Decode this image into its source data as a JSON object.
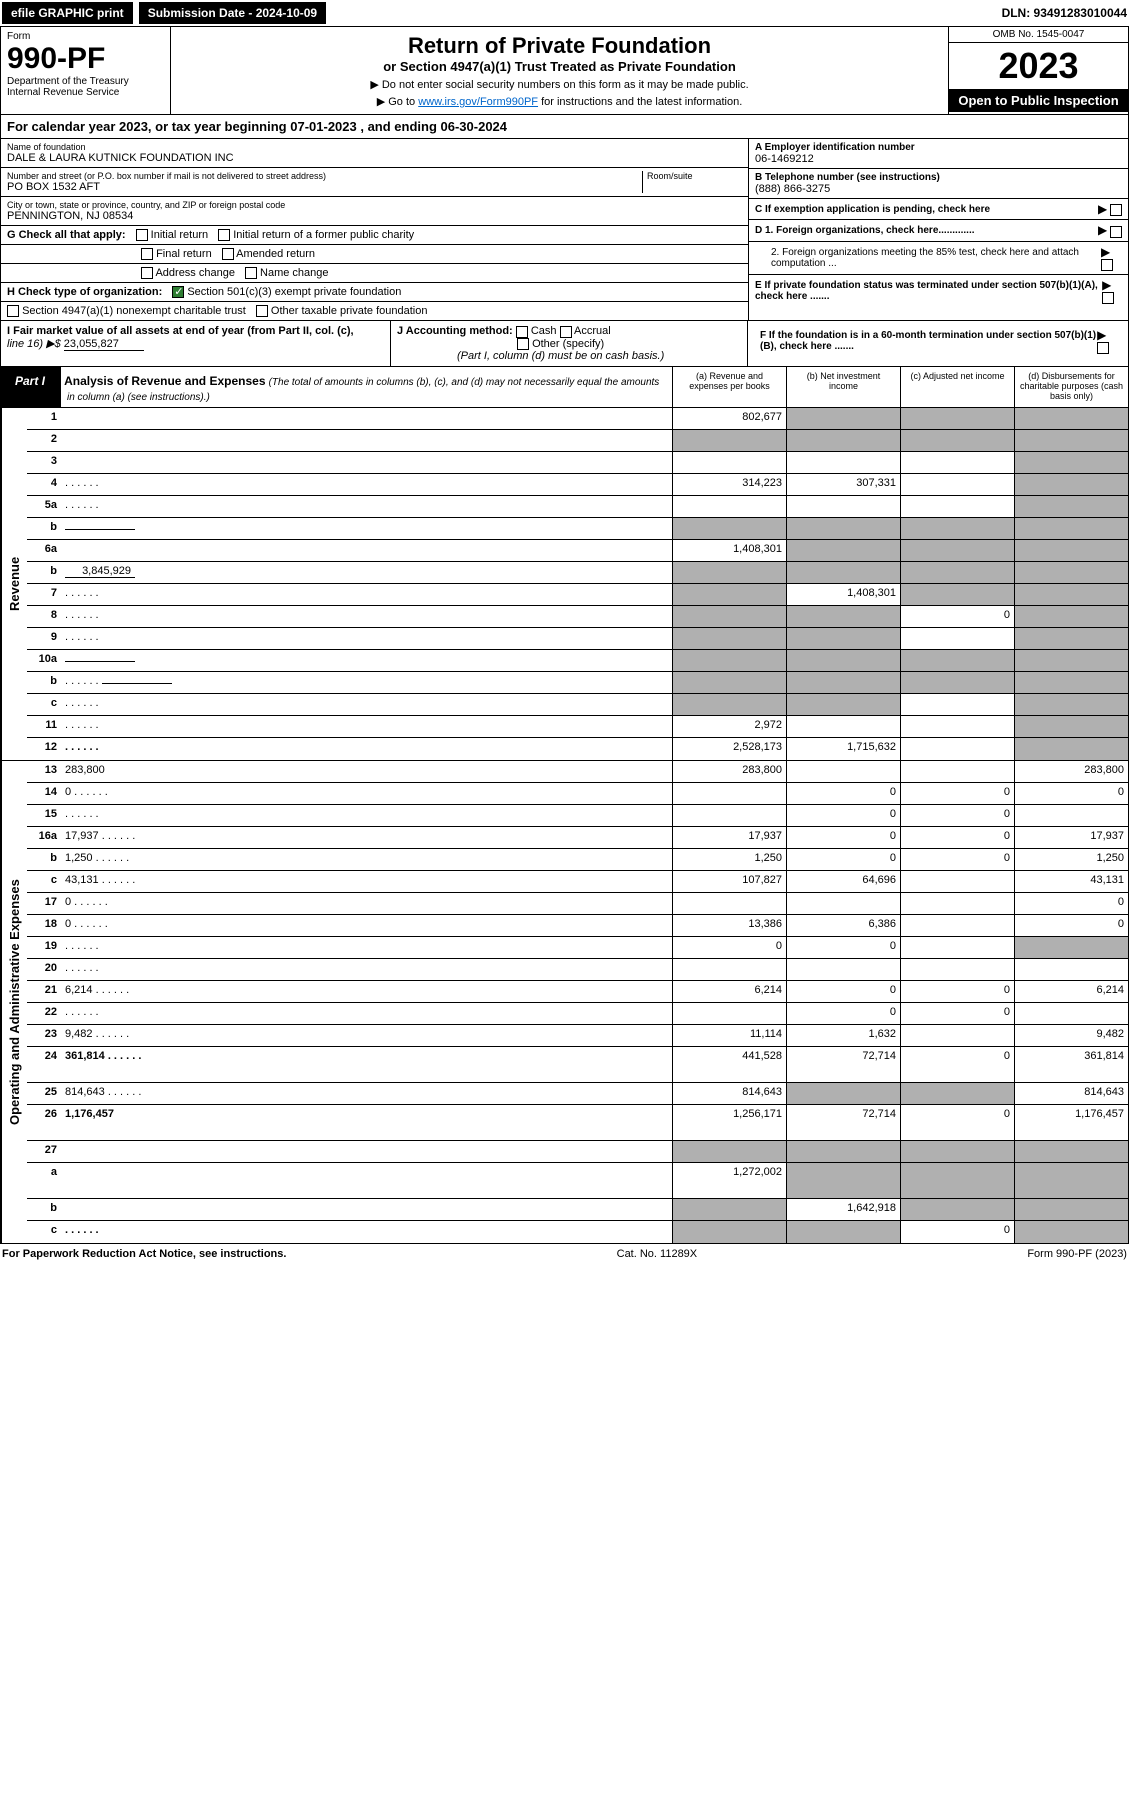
{
  "topbar": {
    "efile": "efile GRAPHIC print",
    "submission_label": "Submission Date - 2024-10-09",
    "dln": "DLN: 93491283010044"
  },
  "header": {
    "form_label": "Form",
    "form_number": "990-PF",
    "dept": "Department of the Treasury",
    "irs": "Internal Revenue Service",
    "title": "Return of Private Foundation",
    "subtitle": "or Section 4947(a)(1) Trust Treated as Private Foundation",
    "note1": "▶ Do not enter social security numbers on this form as it may be made public.",
    "note2_pre": "▶ Go to ",
    "note2_link": "www.irs.gov/Form990PF",
    "note2_post": " for instructions and the latest information.",
    "omb": "OMB No. 1545-0047",
    "year": "2023",
    "inspect": "Open to Public Inspection"
  },
  "calyear": {
    "text_pre": "For calendar year 2023, or tax year beginning ",
    "begin": "07-01-2023",
    "mid": " , and ending ",
    "end": "06-30-2024"
  },
  "entity": {
    "name_label": "Name of foundation",
    "name": "DALE & LAURA KUTNICK FOUNDATION INC",
    "addr_label": "Number and street (or P.O. box number if mail is not delivered to street address)",
    "addr": "PO BOX 1532 AFT",
    "room_label": "Room/suite",
    "city_label": "City or town, state or province, country, and ZIP or foreign postal code",
    "city": "PENNINGTON, NJ  08534",
    "ein_label": "A Employer identification number",
    "ein": "06-1469212",
    "phone_label": "B Telephone number (see instructions)",
    "phone": "(888) 866-3275",
    "c_label": "C If exemption application is pending, check here",
    "d1": "D 1. Foreign organizations, check here.............",
    "d2": "2. Foreign organizations meeting the 85% test, check here and attach computation ...",
    "e_label": "E  If private foundation status was terminated under section 507(b)(1)(A), check here .......",
    "f_label": "F  If the foundation is in a 60-month termination under section 507(b)(1)(B), check here ......."
  },
  "checks": {
    "g_label": "G Check all that apply:",
    "initial": "Initial return",
    "initial_former": "Initial return of a former public charity",
    "final": "Final return",
    "amended": "Amended return",
    "addr_change": "Address change",
    "name_change": "Name change",
    "h_label": "H Check type of organization:",
    "h_501c3": "Section 501(c)(3) exempt private foundation",
    "h_4947": "Section 4947(a)(1) nonexempt charitable trust",
    "h_other": "Other taxable private foundation",
    "i_label": "I Fair market value of all assets at end of year (from Part II, col. (c),",
    "i_line": "line 16) ▶$",
    "i_val": "23,055,827",
    "j_label": "J Accounting method:",
    "j_cash": "Cash",
    "j_accrual": "Accrual",
    "j_other": "Other (specify)",
    "j_note": "(Part I, column (d) must be on cash basis.)"
  },
  "part1": {
    "label": "Part I",
    "title": "Analysis of Revenue and Expenses",
    "title_note": "(The total of amounts in columns (b), (c), and (d) may not necessarily equal the amounts in column (a) (see instructions).)",
    "col_a": "(a) Revenue and expenses per books",
    "col_b": "(b) Net investment income",
    "col_c": "(c) Adjusted net income",
    "col_d": "(d) Disbursements for charitable purposes (cash basis only)"
  },
  "side_revenue": "Revenue",
  "side_expenses": "Operating and Administrative Expenses",
  "rows": [
    {
      "n": "1",
      "d": "",
      "a": "802,677",
      "b": "",
      "c": "",
      "sb": true,
      "sc": true,
      "sd": true
    },
    {
      "n": "2",
      "d": "",
      "a": "",
      "b": "",
      "c": "",
      "sa": true,
      "sb": true,
      "sc": true,
      "sd": true,
      "bold_parts": true
    },
    {
      "n": "3",
      "d": "",
      "a": "",
      "b": "",
      "c": "",
      "sd": true
    },
    {
      "n": "4",
      "d": "",
      "a": "314,223",
      "b": "307,331",
      "c": "",
      "sd": true,
      "dots": true
    },
    {
      "n": "5a",
      "d": "",
      "a": "",
      "b": "",
      "c": "",
      "sd": true,
      "dots": true
    },
    {
      "n": "b",
      "d": "",
      "a": "",
      "b": "",
      "c": "",
      "sa": true,
      "sb": true,
      "sc": true,
      "sd": true,
      "inline": true
    },
    {
      "n": "6a",
      "d": "",
      "a": "1,408,301",
      "b": "",
      "c": "",
      "sb": true,
      "sc": true,
      "sd": true
    },
    {
      "n": "b",
      "d": "",
      "a": "",
      "b": "",
      "c": "",
      "sa": true,
      "sb": true,
      "sc": true,
      "sd": true,
      "inline": true,
      "inline_val": "3,845,929"
    },
    {
      "n": "7",
      "d": "",
      "a": "",
      "b": "1,408,301",
      "c": "",
      "sa": true,
      "sc": true,
      "sd": true,
      "dots": true
    },
    {
      "n": "8",
      "d": "",
      "a": "",
      "b": "",
      "c": "0",
      "sa": true,
      "sb": true,
      "sd": true,
      "dots": true
    },
    {
      "n": "9",
      "d": "",
      "a": "",
      "b": "",
      "c": "",
      "sa": true,
      "sb": true,
      "sd": true,
      "dots": true
    },
    {
      "n": "10a",
      "d": "",
      "a": "",
      "b": "",
      "c": "",
      "sa": true,
      "sb": true,
      "sc": true,
      "sd": true,
      "inline": true
    },
    {
      "n": "b",
      "d": "",
      "a": "",
      "b": "",
      "c": "",
      "sa": true,
      "sb": true,
      "sc": true,
      "sd": true,
      "inline": true,
      "dots": true
    },
    {
      "n": "c",
      "d": "",
      "a": "",
      "b": "",
      "c": "",
      "sa": true,
      "sb": true,
      "sd": true,
      "dots": true
    },
    {
      "n": "11",
      "d": "",
      "a": "2,972",
      "b": "",
      "c": "",
      "sd": true,
      "dots": true
    },
    {
      "n": "12",
      "d": "",
      "a": "2,528,173",
      "b": "1,715,632",
      "c": "",
      "sd": true,
      "bold": true,
      "dots": true
    }
  ],
  "exp_rows": [
    {
      "n": "13",
      "d": "283,800",
      "a": "283,800",
      "b": "",
      "c": ""
    },
    {
      "n": "14",
      "d": "0",
      "a": "",
      "b": "0",
      "c": "0",
      "dots": true
    },
    {
      "n": "15",
      "d": "",
      "a": "",
      "b": "0",
      "c": "0",
      "dots": true
    },
    {
      "n": "16a",
      "d": "17,937",
      "a": "17,937",
      "b": "0",
      "c": "0",
      "dots": true
    },
    {
      "n": "b",
      "d": "1,250",
      "a": "1,250",
      "b": "0",
      "c": "0",
      "dots": true
    },
    {
      "n": "c",
      "d": "43,131",
      "a": "107,827",
      "b": "64,696",
      "c": "",
      "dots": true
    },
    {
      "n": "17",
      "d": "0",
      "a": "",
      "b": "",
      "c": "",
      "dots": true
    },
    {
      "n": "18",
      "d": "0",
      "a": "13,386",
      "b": "6,386",
      "c": "",
      "dots": true
    },
    {
      "n": "19",
      "d": "",
      "a": "0",
      "b": "0",
      "c": "",
      "sd": true,
      "dots": true
    },
    {
      "n": "20",
      "d": "",
      "a": "",
      "b": "",
      "c": "",
      "dots": true
    },
    {
      "n": "21",
      "d": "6,214",
      "a": "6,214",
      "b": "0",
      "c": "0",
      "dots": true
    },
    {
      "n": "22",
      "d": "",
      "a": "",
      "b": "0",
      "c": "0",
      "dots": true
    },
    {
      "n": "23",
      "d": "9,482",
      "a": "11,114",
      "b": "1,632",
      "c": "",
      "dots": true
    },
    {
      "n": "24",
      "d": "361,814",
      "a": "441,528",
      "b": "72,714",
      "c": "0",
      "bold": true,
      "dots": true,
      "twoline": true
    },
    {
      "n": "25",
      "d": "814,643",
      "a": "814,643",
      "b": "",
      "c": "",
      "sb": true,
      "sc": true,
      "dots": true
    },
    {
      "n": "26",
      "d": "1,176,457",
      "a": "1,256,171",
      "b": "72,714",
      "c": "0",
      "bold": true,
      "twoline": true
    },
    {
      "n": "27",
      "d": "",
      "a": "",
      "b": "",
      "c": "",
      "sa": true,
      "sb": true,
      "sc": true,
      "sd": true
    },
    {
      "n": "a",
      "d": "",
      "a": "1,272,002",
      "b": "",
      "c": "",
      "sb": true,
      "sc": true,
      "sd": true,
      "bold": true,
      "twoline": true
    },
    {
      "n": "b",
      "d": "",
      "a": "",
      "b": "1,642,918",
      "c": "",
      "sa": true,
      "sc": true,
      "sd": true,
      "bold": true
    },
    {
      "n": "c",
      "d": "",
      "a": "",
      "b": "",
      "c": "0",
      "sa": true,
      "sb": true,
      "sd": true,
      "bold": true,
      "dots": true
    }
  ],
  "footer": {
    "left": "For Paperwork Reduction Act Notice, see instructions.",
    "mid": "Cat. No. 11289X",
    "right": "Form 990-PF (2023)"
  }
}
